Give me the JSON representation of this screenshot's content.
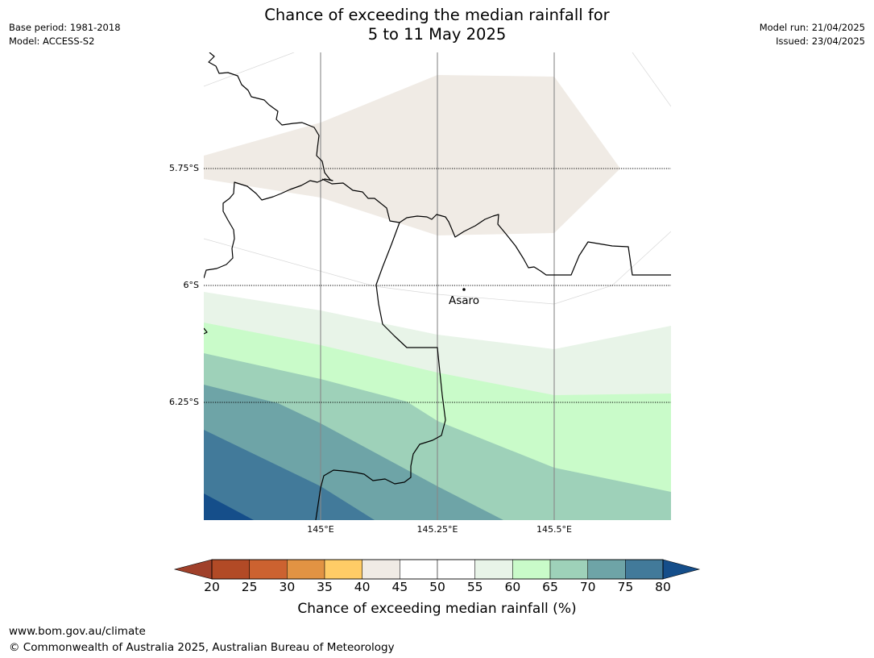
{
  "header": {
    "title_line1": "Chance of exceeding the median rainfall for",
    "title_line2": "5 to 11 May 2025",
    "base_period": "Base period: 1981-2018",
    "model": "Model: ACCESS-S2",
    "model_run": "Model run: 21/04/2025",
    "issued": "Issued: 23/04/2025"
  },
  "map": {
    "lat_labels": [
      "5.75°S",
      "6°S",
      "6.25°S"
    ],
    "lon_labels": [
      "145°E",
      "145.25°E",
      "145.5°E"
    ],
    "place": "Asaro"
  },
  "colorbar": {
    "ticks": [
      "20",
      "25",
      "30",
      "35",
      "40",
      "45",
      "50",
      "55",
      "60",
      "65",
      "70",
      "75",
      "80"
    ],
    "label": "Chance of exceeding median rainfall (%)",
    "colors": [
      "#a0402a",
      "#b24a26",
      "#cc6230",
      "#e29343",
      "#ffcc66",
      "#f0ebe5",
      "#ffffff",
      "#ffffff",
      "#e8f4e8",
      "#c9fbc9",
      "#9ed1b9",
      "#6ea4a7",
      "#427a9a",
      "#154e8a"
    ]
  },
  "footer": {
    "url": "www.bom.gov.au/climate",
    "copyright": "© Commonwealth of Australia 2025, Australian Bureau of Meteorology"
  }
}
